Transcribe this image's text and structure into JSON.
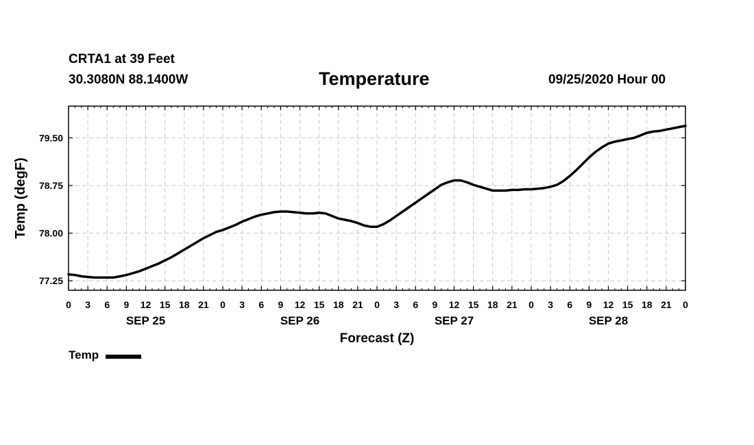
{
  "header": {
    "station": "CRTA1 at 39 Feet",
    "location": "30.3080N 88.1400W",
    "title": "Temperature",
    "run_time": "09/25/2020 Hour 00"
  },
  "legend": {
    "label": "Temp"
  },
  "chart_data": {
    "type": "line",
    "title": "Temperature",
    "xlabel": "Forecast (Z)",
    "ylabel": "Temp (degF)",
    "xlim": [
      0,
      96
    ],
    "ylim": [
      77.1,
      80.0
    ],
    "yticks": [
      77.25,
      78.0,
      78.75,
      79.5
    ],
    "ytick_labels": [
      "77.25",
      "78.00",
      "78.75",
      "79.50"
    ],
    "xtick_step_hours": 3,
    "xtick_labels": [
      "0",
      "3",
      "6",
      "9",
      "12",
      "15",
      "18",
      "21",
      "0",
      "3",
      "6",
      "9",
      "12",
      "15",
      "18",
      "21",
      "0",
      "3",
      "6",
      "9",
      "12",
      "15",
      "18",
      "21",
      "0",
      "3",
      "6",
      "9",
      "12",
      "15",
      "18",
      "21",
      "0"
    ],
    "day_labels": [
      {
        "label": "SEP 25",
        "hour": 12
      },
      {
        "label": "SEP 26",
        "hour": 36
      },
      {
        "label": "SEP 27",
        "hour": 60
      },
      {
        "label": "SEP 28",
        "hour": 84
      }
    ],
    "grid": true,
    "legend_position": "bottom-left",
    "line_color": "#000000",
    "series": [
      {
        "name": "Temp",
        "x": [
          0,
          1,
          2,
          3,
          4,
          5,
          6,
          7,
          8,
          9,
          10,
          11,
          12,
          13,
          14,
          15,
          16,
          17,
          18,
          19,
          20,
          21,
          22,
          23,
          24,
          25,
          26,
          27,
          28,
          29,
          30,
          31,
          32,
          33,
          34,
          35,
          36,
          37,
          38,
          39,
          40,
          41,
          42,
          43,
          44,
          45,
          46,
          47,
          48,
          49,
          50,
          51,
          52,
          53,
          54,
          55,
          56,
          57,
          58,
          59,
          60,
          61,
          62,
          63,
          64,
          65,
          66,
          67,
          68,
          69,
          70,
          71,
          72,
          73,
          74,
          75,
          76,
          77,
          78,
          79,
          80,
          81,
          82,
          83,
          84,
          85,
          86,
          87,
          88,
          89,
          90,
          91,
          92,
          93,
          94,
          95,
          96
        ],
        "values": [
          77.35,
          77.34,
          77.32,
          77.31,
          77.3,
          77.3,
          77.3,
          77.3,
          77.32,
          77.34,
          77.37,
          77.4,
          77.44,
          77.48,
          77.52,
          77.57,
          77.62,
          77.68,
          77.74,
          77.8,
          77.86,
          77.92,
          77.97,
          78.02,
          78.05,
          78.09,
          78.13,
          78.18,
          78.22,
          78.26,
          78.29,
          78.31,
          78.33,
          78.34,
          78.34,
          78.33,
          78.32,
          78.31,
          78.31,
          78.32,
          78.31,
          78.27,
          78.23,
          78.21,
          78.19,
          78.16,
          78.12,
          78.1,
          78.1,
          78.14,
          78.2,
          78.27,
          78.34,
          78.41,
          78.48,
          78.55,
          78.62,
          78.69,
          78.76,
          78.8,
          78.83,
          78.83,
          78.8,
          78.76,
          78.73,
          78.7,
          78.67,
          78.67,
          78.67,
          78.68,
          78.68,
          78.69,
          78.69,
          78.7,
          78.71,
          78.73,
          78.76,
          78.82,
          78.9,
          78.99,
          79.09,
          79.19,
          79.28,
          79.35,
          79.41,
          79.44,
          79.46,
          79.48,
          79.5,
          79.54,
          79.58,
          79.6,
          79.61,
          79.63,
          79.65,
          79.67,
          79.69
        ]
      }
    ]
  }
}
